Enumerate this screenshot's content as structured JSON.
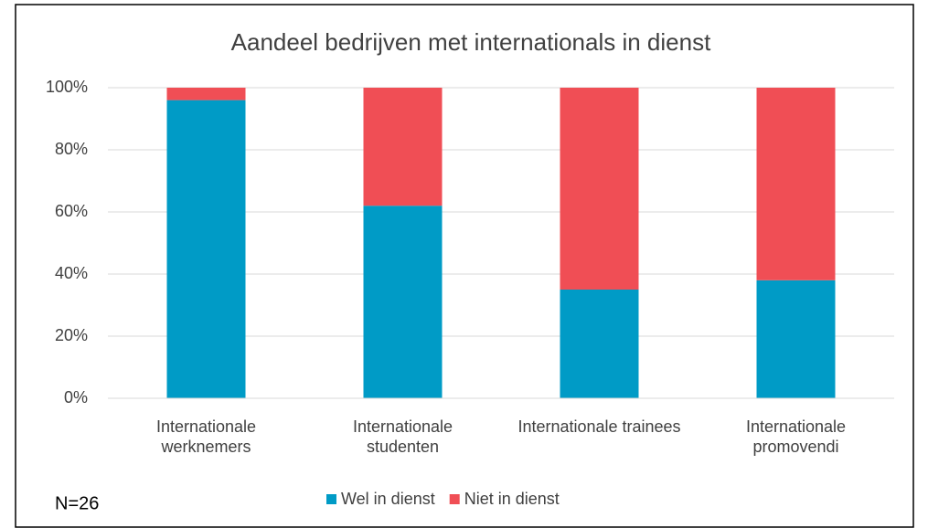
{
  "chart_data": {
    "type": "stacked_bar",
    "title": "Aandeel bedrijven met internationals in dienst",
    "categories": [
      "Internationale werknemers",
      "Internationale studenten",
      "Internationale trainees",
      "Internationale promovendi"
    ],
    "series": [
      {
        "name": "Wel in dienst",
        "color": "#009bc6",
        "values": [
          96,
          62,
          35,
          38
        ]
      },
      {
        "name": "Niet in dienst",
        "color": "#f04e55",
        "values": [
          4,
          38,
          65,
          62
        ]
      }
    ],
    "ylim": [
      0,
      100
    ],
    "yticks": [
      {
        "value": 0,
        "label": "0%"
      },
      {
        "value": 20,
        "label": "20%"
      },
      {
        "value": 40,
        "label": "40%"
      },
      {
        "value": 60,
        "label": "60%"
      },
      {
        "value": 80,
        "label": "80%"
      },
      {
        "value": 100,
        "label": "100%"
      }
    ],
    "grid": true,
    "legend": "bottom",
    "annotations": [
      "N=26"
    ]
  }
}
